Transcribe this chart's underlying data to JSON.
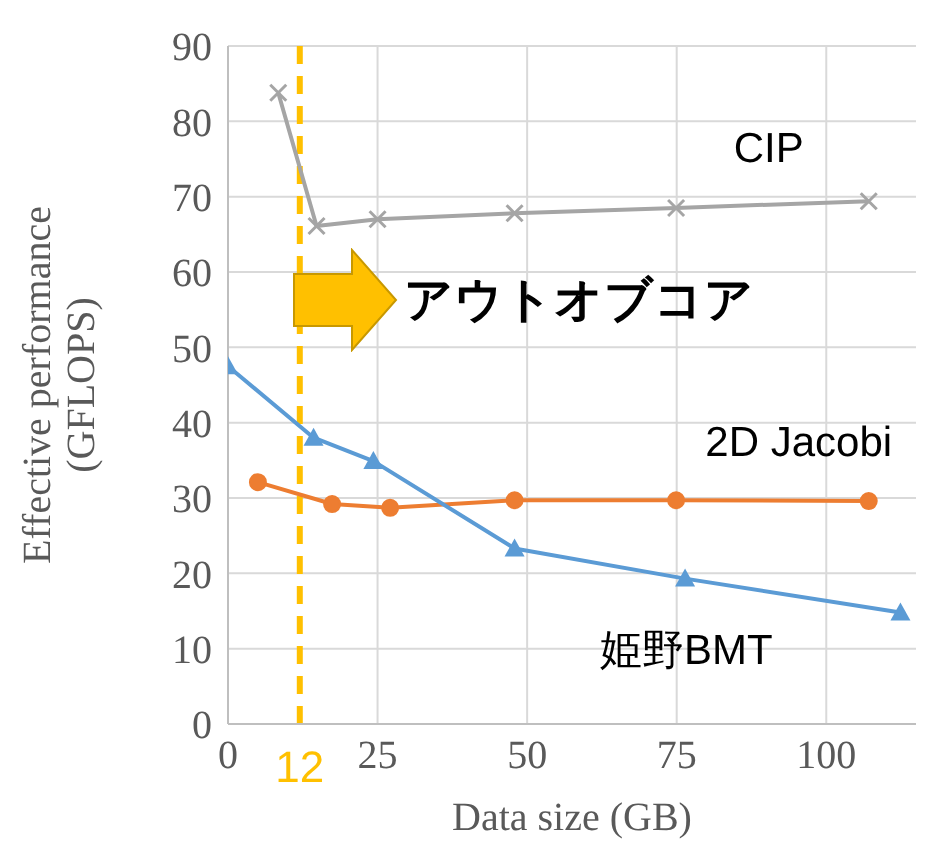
{
  "chart_data": {
    "type": "line",
    "xlabel": "Data size (GB)",
    "ylabel": "Effective performance (GFLOPS)",
    "xlim": [
      0,
      115
    ],
    "xticks": [
      0,
      25,
      50,
      75,
      100
    ],
    "ylim": [
      0,
      90
    ],
    "yticks": [
      0,
      10,
      20,
      30,
      40,
      50,
      60,
      70,
      80,
      90
    ],
    "grid": true,
    "legend": false,
    "series": [
      {
        "name": "CIP",
        "color": "#a5a5a5",
        "marker": "cross",
        "x": [
          8.4,
          14.8,
          25,
          47.9,
          74.9,
          107.1
        ],
        "values": [
          83.8,
          66.1,
          67,
          67.8,
          68.5,
          69.4
        ]
      },
      {
        "name": "2D Jacobi",
        "color": "#ed7d31",
        "marker": "circle",
        "x": [
          5,
          17.4,
          27.1,
          47.9,
          74.9,
          107.1
        ],
        "values": [
          32.1,
          29.2,
          28.7,
          29.7,
          29.7,
          29.6
        ]
      },
      {
        "name": "姫野BMT",
        "color": "#5b9bd5",
        "marker": "triangle",
        "x": [
          0,
          14.3,
          24.3,
          47.9,
          76.4,
          112.4
        ],
        "values": [
          47.5,
          38,
          34.9,
          23.3,
          19.3,
          14.8
        ]
      }
    ],
    "ref_lines": [
      {
        "axis": "x",
        "value": 12,
        "label": "12",
        "color": "#ffc000",
        "line_style": "dashed"
      }
    ],
    "annotations": [
      "アウトオブコア"
    ]
  }
}
